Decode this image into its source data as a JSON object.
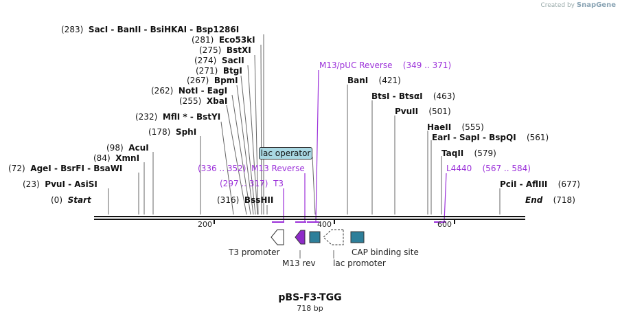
{
  "logo": {
    "prefix": "Created by",
    "brand": "SnapGene"
  },
  "map": {
    "title": "pBS-F3-TGG",
    "length_label": "718 bp",
    "start_pos": "(0)",
    "start_label": "Start",
    "end_pos": "(718)",
    "end_label": "End",
    "ticks": [
      "200",
      "400",
      "600"
    ]
  },
  "enzymes": [
    {
      "pos": "(283)",
      "name": "SacI  -  BanII  -  BsiHKAI  -  Bsp1286I"
    },
    {
      "pos": "(281)",
      "name": "Eco53kI"
    },
    {
      "pos": "(275)",
      "name": "BstXI"
    },
    {
      "pos": "(274)",
      "name": "SacII"
    },
    {
      "pos": "(271)",
      "name": "BtgI"
    },
    {
      "pos": "(267)",
      "name": "BpmI"
    },
    {
      "pos": "(262)",
      "name": "NotI  -  EagI"
    },
    {
      "pos": "(255)",
      "name": "XbaI"
    },
    {
      "pos": "(232)",
      "name": "MflI *  -  BstYI"
    },
    {
      "pos": "(178)",
      "name": "SphI"
    },
    {
      "pos": "(98)",
      "name": "AcuI"
    },
    {
      "pos": "(84)",
      "name": "XmnI"
    },
    {
      "pos": "(72)",
      "name": "AgeI  -  BsrFI  -  BsaWI"
    },
    {
      "pos": "(23)",
      "name": "PvuI  -  AsiSI"
    },
    {
      "pos": "(316)",
      "name": "BssHII"
    },
    {
      "pos": "(421)",
      "name": "BanI"
    },
    {
      "pos": "(463)",
      "name": "BtsI  -  BtsαI"
    },
    {
      "pos": "(501)",
      "name": "PvuII"
    },
    {
      "pos": "(555)",
      "name": "HaeII"
    },
    {
      "pos": "(561)",
      "name": "EarI  -  SapI  -  BspQI"
    },
    {
      "pos": "(579)",
      "name": "TaqII"
    },
    {
      "pos": "(677)",
      "name": "PciI  -  AflIII"
    }
  ],
  "primers": [
    {
      "name": "M13/pUC Reverse",
      "range": "(349 .. 371)"
    },
    {
      "range": "(336 .. 352)",
      "name": "M13 Reverse"
    },
    {
      "range": "(297 .. 317)",
      "name": "T3"
    },
    {
      "name": "L4440",
      "range": "(567 .. 584)"
    }
  ],
  "features": {
    "t3_promoter": "T3 promoter",
    "m13_rev": "M13 rev",
    "lac_promoter": "lac promoter",
    "cap_site": "CAP binding site",
    "lac_operator": "lac operator"
  },
  "colors": {
    "primer": "#9b30d9",
    "feature_teal": "#2e7f9a",
    "operator_fill": "#a9d8e3"
  }
}
